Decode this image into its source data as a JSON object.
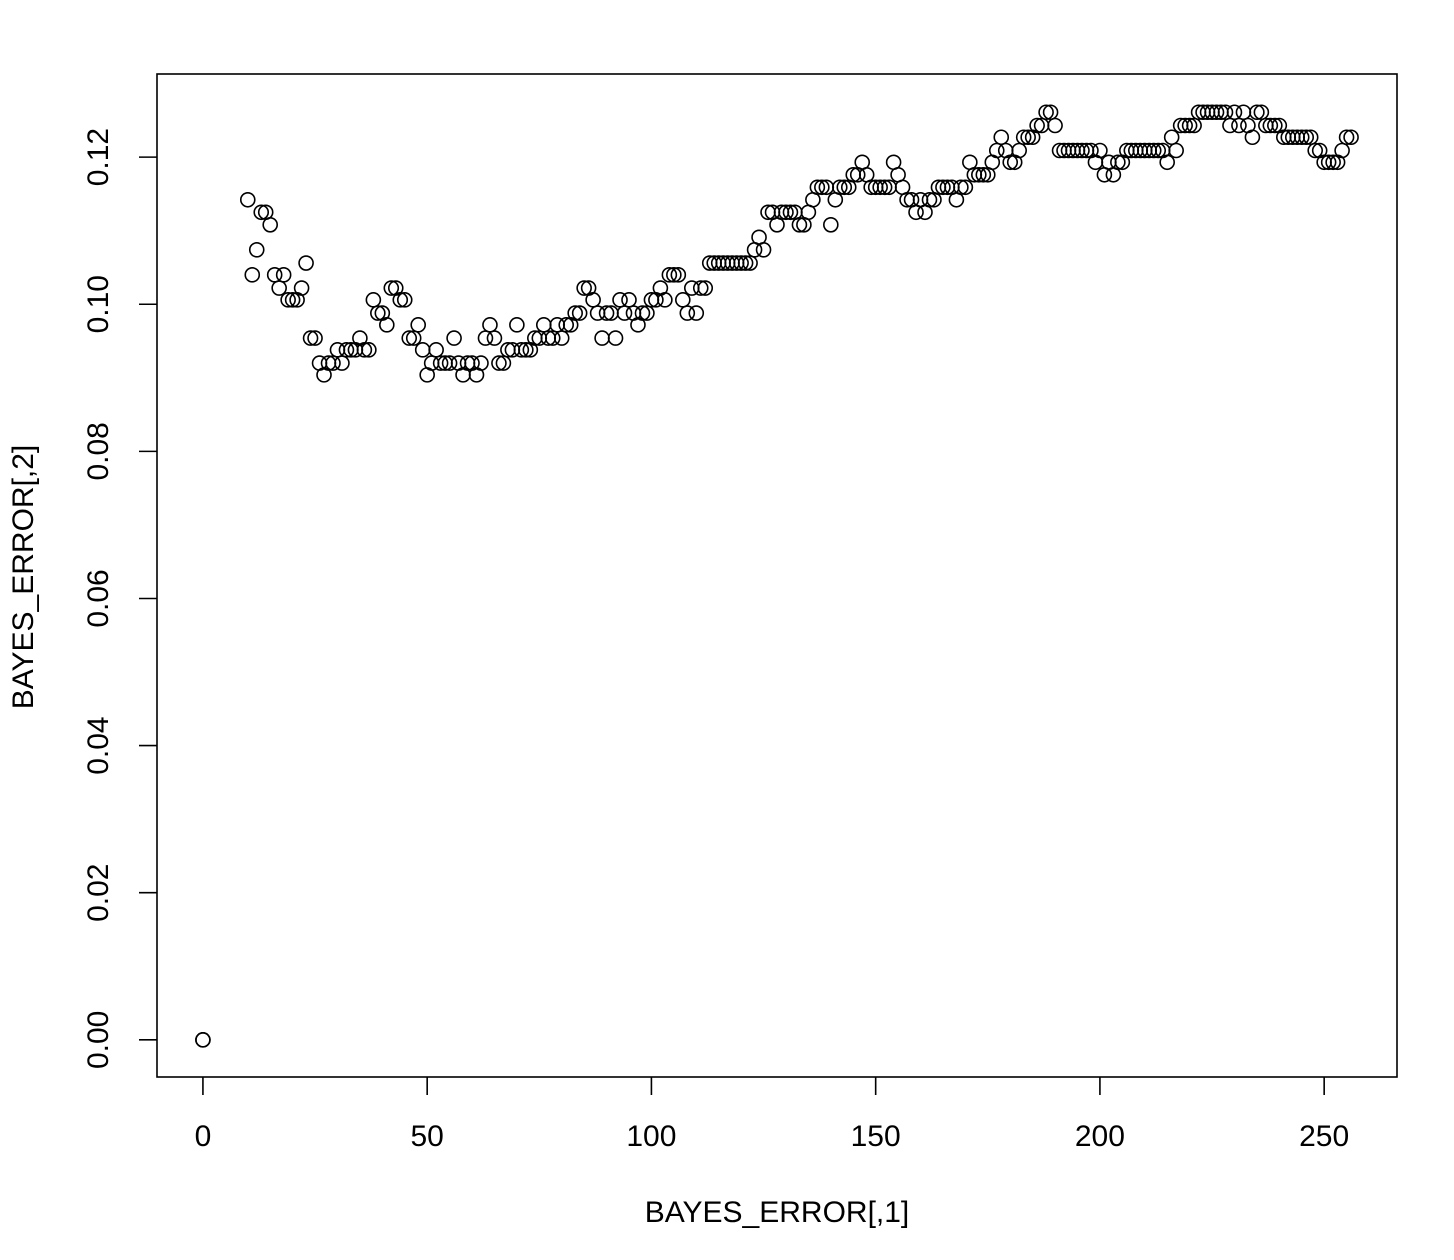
{
  "chart_data": {
    "type": "scatter",
    "x_label": "BAYES_ERROR[,1]",
    "y_label": "BAYES_ERROR[,2]",
    "color": "#000000",
    "xlim": [
      -10.24,
      266.24
    ],
    "ylim": [
      -0.00505,
      0.1313
    ],
    "xticks": [
      0,
      50,
      100,
      150,
      200,
      250
    ],
    "yticks": [
      {
        "value": 0,
        "label": "0.00"
      },
      0.02,
      0.04,
      0.06,
      0.08,
      {
        "value": 0.1,
        "label": "0.10"
      },
      0.12
    ],
    "x": [
      0,
      0,
      10,
      11,
      12,
      13,
      14,
      15,
      16,
      17,
      18,
      19,
      20,
      21,
      22,
      23,
      24,
      25,
      26,
      27,
      28,
      29,
      30,
      31,
      32,
      33,
      34,
      35,
      36,
      37,
      38,
      39,
      40,
      41,
      42,
      43,
      44,
      45,
      46,
      47,
      48,
      49,
      50,
      51,
      52,
      53,
      54,
      55,
      56,
      57,
      58,
      59,
      60,
      61,
      62,
      63,
      64,
      65,
      66,
      67,
      68,
      69,
      70,
      71,
      72,
      73,
      74,
      75,
      76,
      77,
      78,
      79,
      80,
      81,
      82,
      83,
      84,
      85,
      86,
      87,
      88,
      89,
      90,
      91,
      92,
      93,
      94,
      95,
      96,
      97,
      98,
      99,
      100,
      101,
      102,
      103,
      104,
      105,
      106,
      107,
      108,
      109,
      110,
      111,
      112,
      113,
      114,
      115,
      116,
      117,
      118,
      119,
      120,
      121,
      122,
      123,
      124,
      125,
      126,
      127,
      128,
      129,
      130,
      131,
      132,
      133,
      134,
      135,
      136,
      137,
      138,
      139,
      140,
      141,
      142,
      143,
      144,
      145,
      146,
      147,
      148,
      149,
      150,
      151,
      152,
      153,
      154,
      155,
      156,
      157,
      158,
      159,
      160,
      161,
      162,
      163,
      164,
      165,
      166,
      167,
      168,
      169,
      170,
      171,
      172,
      173,
      174,
      175,
      176,
      177,
      178,
      179,
      180,
      181,
      182,
      183,
      184,
      185,
      186,
      187,
      188,
      189,
      190,
      191,
      192,
      193,
      194,
      195,
      196,
      197,
      198,
      199,
      200,
      201,
      202,
      203,
      204,
      205,
      206,
      207,
      208,
      209,
      210,
      211,
      212,
      213,
      214,
      215,
      216,
      217,
      218,
      219,
      220,
      221,
      222,
      223,
      224,
      225,
      226,
      227,
      228,
      229,
      230,
      231,
      232,
      233,
      234,
      235,
      236,
      237,
      238,
      239,
      240,
      241,
      242,
      243,
      244,
      245,
      246,
      247,
      248,
      249,
      250,
      251,
      252,
      253,
      254,
      255,
      256
    ],
    "values": [
      0,
      0,
      0.1142,
      0.104,
      0.1074,
      0.1125,
      0.1125,
      0.1108,
      0.104,
      0.1022,
      0.104,
      0.1006,
      0.1006,
      0.1006,
      0.1022,
      0.1056,
      0.0954,
      0.0954,
      0.092,
      0.0904,
      0.092,
      0.092,
      0.0938,
      0.092,
      0.0938,
      0.0938,
      0.0938,
      0.0954,
      0.0938,
      0.0938,
      0.1006,
      0.0988,
      0.0988,
      0.0972,
      0.1022,
      0.1022,
      0.1006,
      0.1006,
      0.0954,
      0.0954,
      0.0972,
      0.0938,
      0.0904,
      0.092,
      0.0938,
      0.092,
      0.092,
      0.092,
      0.0954,
      0.092,
      0.0904,
      0.092,
      0.092,
      0.0904,
      0.092,
      0.0954,
      0.0972,
      0.0954,
      0.092,
      0.092,
      0.0938,
      0.0938,
      0.0972,
      0.0938,
      0.0938,
      0.0938,
      0.0954,
      0.0954,
      0.0972,
      0.0954,
      0.0954,
      0.0972,
      0.0954,
      0.0972,
      0.0972,
      0.0988,
      0.0988,
      0.1022,
      0.1022,
      0.1006,
      0.0988,
      0.0954,
      0.0988,
      0.0988,
      0.0954,
      0.1006,
      0.0988,
      0.1006,
      0.0988,
      0.0972,
      0.0988,
      0.0988,
      0.1006,
      0.1006,
      0.1022,
      0.1006,
      0.104,
      0.104,
      0.104,
      0.1006,
      0.0988,
      0.1022,
      0.0988,
      0.1022,
      0.1022,
      0.1056,
      0.1056,
      0.1056,
      0.1056,
      0.1056,
      0.1056,
      0.1056,
      0.1056,
      0.1056,
      0.1056,
      0.1074,
      0.1091,
      0.1074,
      0.1125,
      0.1125,
      0.1108,
      0.1125,
      0.1125,
      0.1125,
      0.1125,
      0.1108,
      0.1108,
      0.1125,
      0.1142,
      0.1159,
      0.1159,
      0.1159,
      0.1108,
      0.1142,
      0.1159,
      0.1159,
      0.1159,
      0.1176,
      0.1176,
      0.1193,
      0.1176,
      0.1159,
      0.1159,
      0.1159,
      0.1159,
      0.1159,
      0.1193,
      0.1176,
      0.1159,
      0.1142,
      0.1142,
      0.1125,
      0.1142,
      0.1125,
      0.1142,
      0.1142,
      0.1159,
      0.1159,
      0.1159,
      0.1159,
      0.1142,
      0.1159,
      0.1159,
      0.1193,
      0.1176,
      0.1176,
      0.1176,
      0.1176,
      0.1193,
      0.1209,
      0.1227,
      0.1209,
      0.1193,
      0.1193,
      0.1209,
      0.1227,
      0.1227,
      0.1227,
      0.1243,
      0.1243,
      0.1261,
      0.1261,
      0.1243,
      0.1209,
      0.1209,
      0.1209,
      0.1209,
      0.1209,
      0.1209,
      0.1209,
      0.1209,
      0.1193,
      0.1209,
      0.1176,
      0.1193,
      0.1176,
      0.1193,
      0.1193,
      0.1209,
      0.1209,
      0.1209,
      0.1209,
      0.1209,
      0.1209,
      0.1209,
      0.1209,
      0.1209,
      0.1193,
      0.1227,
      0.1209,
      0.1243,
      0.1243,
      0.1243,
      0.1243,
      0.1261,
      0.1261,
      0.1261,
      0.1261,
      0.1261,
      0.1261,
      0.1261,
      0.1243,
      0.1261,
      0.1243,
      0.1261,
      0.1243,
      0.1227,
      0.1261,
      0.1261,
      0.1243,
      0.1243,
      0.1243,
      0.1243,
      0.1227,
      0.1227,
      0.1227,
      0.1227,
      0.1227,
      0.1227,
      0.1227,
      0.1209,
      0.1209,
      0.1193,
      0.1193,
      0.1193,
      0.1193,
      0.1209,
      0.1227,
      0.1227
    ]
  }
}
